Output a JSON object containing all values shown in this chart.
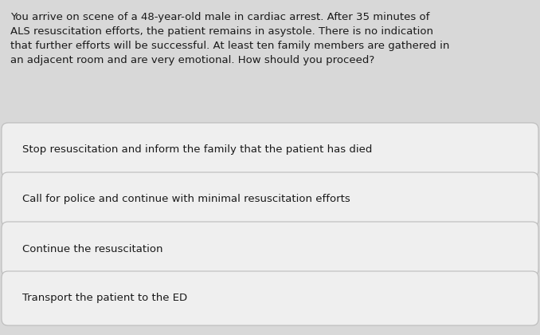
{
  "background_color": "#d8d8d8",
  "question_text": "You arrive on scene of a 48-year-old male in cardiac arrest. After 35 minutes of\nALS resuscitation efforts, the patient remains in asystole. There is no indication\nthat further efforts will be successful. At least ten family members are gathered in\nan adjacent room and are very emotional. How should you proceed?",
  "options": [
    "Stop resuscitation and inform the family that the patient has died",
    "Call for police and continue with minimal resuscitation efforts",
    "Continue the resuscitation",
    "Transport the patient to the ED"
  ],
  "question_font_size": 9.5,
  "option_font_size": 9.5,
  "question_color": "#1a1a1a",
  "option_color": "#1a1a1a",
  "option_bg_color": "#efefef",
  "option_border_color": "#bbbbbb",
  "fig_width": 6.78,
  "fig_height": 4.2,
  "dpi": 100
}
